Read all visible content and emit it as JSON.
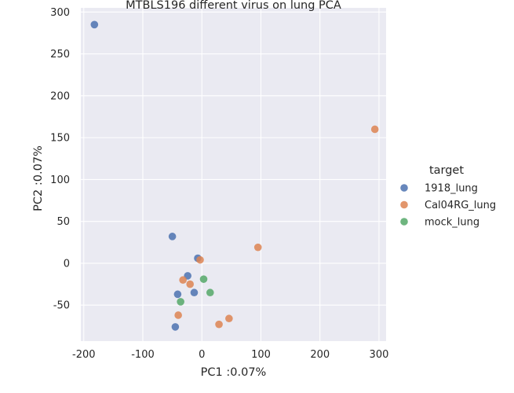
{
  "chart_data": {
    "type": "scatter",
    "title": "MTBLS196 different virus on lung PCA",
    "xlabel": "PC1 :0.07%",
    "ylabel": "PC2 :0.07%",
    "xlim": [
      -205,
      312
    ],
    "ylim": [
      -93,
      305
    ],
    "xticks": [
      -200,
      -100,
      0,
      100,
      200,
      300
    ],
    "yticks": [
      -50,
      0,
      50,
      100,
      150,
      200,
      250,
      300
    ],
    "grid": true,
    "legend": {
      "title": "target",
      "position": "right"
    },
    "series": [
      {
        "name": "1918_lung",
        "color": "#4c72b0",
        "points": [
          [
            -182,
            285
          ],
          [
            -50,
            32
          ],
          [
            -7,
            6
          ],
          [
            -24,
            -15
          ],
          [
            -13,
            -35
          ],
          [
            -41,
            -37
          ],
          [
            -45,
            -76
          ]
        ]
      },
      {
        "name": "Cal04RG_lung",
        "color": "#dd8452",
        "points": [
          [
            293,
            160
          ],
          [
            95,
            19
          ],
          [
            -3,
            4
          ],
          [
            -32,
            -20
          ],
          [
            -20,
            -25
          ],
          [
            -40,
            -62
          ],
          [
            46,
            -66
          ],
          [
            29,
            -73
          ]
        ]
      },
      {
        "name": "mock_lung",
        "color": "#55a868",
        "points": [
          [
            3,
            -19
          ],
          [
            14,
            -35
          ],
          [
            -36,
            -46
          ]
        ]
      }
    ]
  }
}
